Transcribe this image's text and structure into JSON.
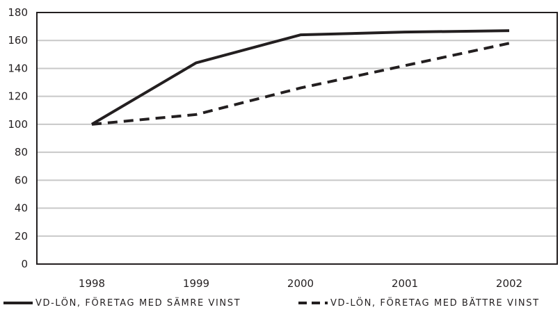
{
  "chart_data": {
    "type": "line",
    "x": [
      "1998",
      "1999",
      "2000",
      "2001",
      "2002"
    ],
    "series": [
      {
        "name": "VD-LÖN, FÖRETAG MED SÄMRE VINST",
        "values": [
          100,
          144,
          164,
          166,
          167
        ],
        "style": "solid"
      },
      {
        "name": "VD-LÖN, FÖRETAG MED BÄTTRE VINST",
        "values": [
          100,
          107,
          126,
          142,
          158
        ],
        "style": "dashed"
      }
    ],
    "y_ticks": [
      "0",
      "20",
      "40",
      "60",
      "80",
      "100",
      "120",
      "140",
      "160",
      "180"
    ],
    "ylim": [
      0,
      180
    ],
    "title": "",
    "xlabel": "",
    "ylabel": "",
    "grid": "horizontal",
    "legend_position": "bottom",
    "colors": {
      "line": "#231f20",
      "grid": "#c8c8c8",
      "axis": "#231f20"
    }
  }
}
